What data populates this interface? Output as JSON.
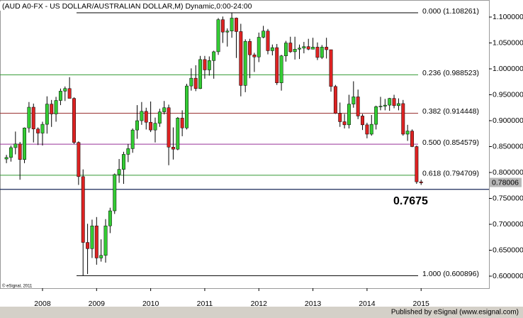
{
  "chart_data": {
    "type": "candlestick",
    "title": "(AUD A0-FX - US DOLLAR/AUSTRALIAN DOLLAR,M) Dynamic,0:00-24:00",
    "copyright": "© eSignal, 2011",
    "footer": "Published by eSignal (www.esignal.com)",
    "categories": [
      null,
      null,
      null,
      null,
      null,
      null,
      null,
      null,
      "2008",
      null,
      null,
      null,
      null,
      null,
      null,
      null,
      null,
      null,
      null,
      null,
      "2009",
      null,
      null,
      null,
      null,
      null,
      null,
      null,
      null,
      null,
      null,
      null,
      "2010",
      null,
      null,
      null,
      null,
      null,
      null,
      null,
      null,
      null,
      null,
      null,
      "2011",
      null,
      null,
      null,
      null,
      null,
      null,
      null,
      null,
      null,
      null,
      null,
      "2012",
      null,
      null,
      null,
      null,
      null,
      null,
      null,
      null,
      null,
      null,
      null,
      "2013",
      null,
      null,
      null,
      null,
      null,
      null,
      null,
      null,
      null,
      null,
      null,
      "2014",
      null,
      null,
      null,
      null,
      null,
      null,
      null,
      null,
      null,
      null,
      null,
      "2015"
    ],
    "open": [
      0.826,
      0.829,
      0.848,
      0.855,
      0.825,
      0.886,
      0.926,
      0.884,
      0.876,
      0.893,
      0.932,
      0.913,
      0.939,
      0.957,
      0.962,
      0.943,
      0.858,
      0.792,
      0.665,
      0.653,
      0.697,
      0.635,
      0.64,
      0.697,
      0.726,
      0.796,
      0.806,
      0.835,
      0.846,
      0.882,
      0.9,
      0.918,
      0.897,
      0.882,
      0.895,
      0.917,
      0.925,
      0.849,
      0.845,
      0.905,
      0.886,
      0.967,
      0.982,
      0.962,
      1.018,
      0.998,
      1.016,
      1.033,
      1.095,
      1.071,
      1.073,
      1.098,
      1.072,
      0.968,
      1.053,
      1.027,
      1.023,
      1.061,
      1.073,
      1.035,
      1.041,
      0.973,
      1.025,
      1.05,
      1.033,
      1.038,
      1.04,
      1.043,
      1.038,
      1.042,
      1.022,
      1.042,
      1.037,
      0.966,
      0.914,
      0.898,
      0.892,
      0.932,
      0.946,
      0.909,
      0.892,
      0.874,
      0.893,
      0.927,
      0.928,
      0.93,
      0.943,
      0.929,
      0.933,
      0.874,
      0.88,
      0.85,
      0.782
    ],
    "high": [
      0.834,
      0.852,
      0.879,
      0.859,
      0.887,
      0.936,
      0.933,
      0.887,
      0.898,
      0.947,
      0.94,
      0.946,
      0.962,
      0.966,
      0.984,
      0.945,
      0.86,
      0.806,
      0.701,
      0.709,
      0.714,
      0.671,
      0.71,
      0.732,
      0.798,
      0.826,
      0.84,
      0.855,
      0.885,
      0.93,
      0.936,
      0.925,
      0.937,
      0.906,
      0.923,
      0.938,
      0.931,
      0.887,
      0.907,
      0.92,
      0.971,
      1.001,
      1.007,
      1.025,
      1.025,
      1.024,
      1.035,
      1.098,
      1.101,
      1.078,
      1.108,
      1.099,
      1.087,
      1.057,
      1.058,
      1.031,
      1.07,
      1.083,
      1.077,
      1.047,
      1.048,
      1.027,
      1.054,
      1.062,
      1.062,
      1.047,
      1.052,
      1.058,
      1.06,
      1.051,
      1.046,
      1.06,
      1.037,
      0.969,
      0.935,
      0.913,
      0.95,
      0.976,
      0.96,
      0.913,
      0.896,
      0.911,
      0.929,
      0.946,
      0.942,
      0.944,
      0.95,
      0.943,
      0.94,
      0.892,
      0.883,
      0.852,
      0.786
    ],
    "low": [
      0.818,
      0.821,
      0.835,
      0.786,
      0.818,
      0.877,
      0.858,
      0.853,
      0.852,
      0.875,
      0.888,
      0.898,
      0.93,
      0.938,
      0.944,
      0.855,
      0.776,
      0.601,
      0.604,
      0.635,
      0.622,
      0.628,
      0.626,
      0.683,
      0.72,
      0.78,
      0.778,
      0.82,
      0.838,
      0.865,
      0.892,
      0.883,
      0.878,
      0.858,
      0.888,
      0.912,
      0.814,
      0.825,
      0.843,
      0.87,
      0.883,
      0.958,
      0.957,
      0.961,
      0.981,
      0.987,
      0.981,
      1.027,
      1.05,
      1.043,
      1.06,
      1.021,
      0.947,
      0.955,
      0.982,
      0.994,
      1.013,
      1.059,
      1.028,
      1.026,
      0.969,
      0.958,
      1.014,
      1.031,
      1.018,
      1.019,
      1.03,
      1.036,
      1.038,
      1.017,
      1.019,
      1.02,
      0.956,
      0.913,
      0.888,
      0.885,
      0.885,
      0.925,
      0.903,
      0.882,
      0.866,
      0.871,
      0.883,
      0.92,
      0.92,
      0.919,
      0.924,
      0.92,
      0.871,
      0.861,
      0.849,
      0.778,
      0.776
    ],
    "close": [
      0.829,
      0.848,
      0.855,
      0.825,
      0.886,
      0.926,
      0.884,
      0.876,
      0.893,
      0.932,
      0.913,
      0.939,
      0.957,
      0.962,
      0.943,
      0.858,
      0.792,
      0.665,
      0.653,
      0.697,
      0.635,
      0.64,
      0.697,
      0.726,
      0.796,
      0.806,
      0.835,
      0.846,
      0.882,
      0.9,
      0.918,
      0.897,
      0.882,
      0.895,
      0.917,
      0.925,
      0.849,
      0.845,
      0.905,
      0.886,
      0.967,
      0.982,
      0.962,
      1.018,
      0.998,
      1.016,
      1.033,
      1.095,
      1.071,
      1.073,
      1.098,
      1.072,
      0.968,
      1.053,
      1.027,
      1.023,
      1.061,
      1.073,
      1.035,
      1.041,
      0.973,
      1.025,
      1.05,
      1.033,
      1.038,
      1.04,
      1.043,
      1.038,
      1.042,
      1.022,
      1.042,
      1.037,
      0.966,
      0.914,
      0.898,
      0.892,
      0.932,
      0.946,
      0.909,
      0.892,
      0.874,
      0.893,
      0.927,
      0.928,
      0.93,
      0.943,
      0.929,
      0.933,
      0.874,
      0.88,
      0.85,
      0.782,
      0.78
    ],
    "up_color": "#33cc33",
    "down_color": "#dd2222",
    "ylim": [
      0.5767,
      1.1329
    ],
    "yticks": [
      {
        "value": 0.6,
        "label": "0.600000"
      },
      {
        "value": 0.65,
        "label": "0.650000"
      },
      {
        "value": 0.7,
        "label": "0.700000"
      },
      {
        "value": 0.75,
        "label": "0.750000"
      },
      {
        "value": 0.8,
        "label": "0.800000"
      },
      {
        "value": 0.85,
        "label": "0.850000"
      },
      {
        "value": 0.9,
        "label": "0.900000"
      },
      {
        "value": 0.95,
        "label": "0.950000"
      },
      {
        "value": 1.0,
        "label": "1.000000"
      },
      {
        "value": 1.05,
        "label": "1.050000"
      },
      {
        "value": 1.1,
        "label": "1.100000"
      }
    ],
    "fib_levels": [
      {
        "label": "0.000 (1.108261)",
        "value": 1.108261,
        "color": "#000000"
      },
      {
        "label": "0.236 (0.988523)",
        "value": 0.988523,
        "color": "#339933"
      },
      {
        "label": "0.382 (0.914448)",
        "value": 0.914448,
        "color": "#993333"
      },
      {
        "label": "0.500 (0.854579)",
        "value": 0.854579,
        "color": "#993399"
      },
      {
        "label": "0.618 (0.794709)",
        "value": 0.794709,
        "color": "#339933"
      },
      {
        "label": "1.000 (0.600896)",
        "value": 0.600896,
        "color": "#000000"
      }
    ],
    "level_line": {
      "value": 0.7675,
      "label": "0.7675",
      "color": "#1a2a5a"
    },
    "last_price": {
      "value": 0.78006,
      "label": "0.78006"
    }
  }
}
